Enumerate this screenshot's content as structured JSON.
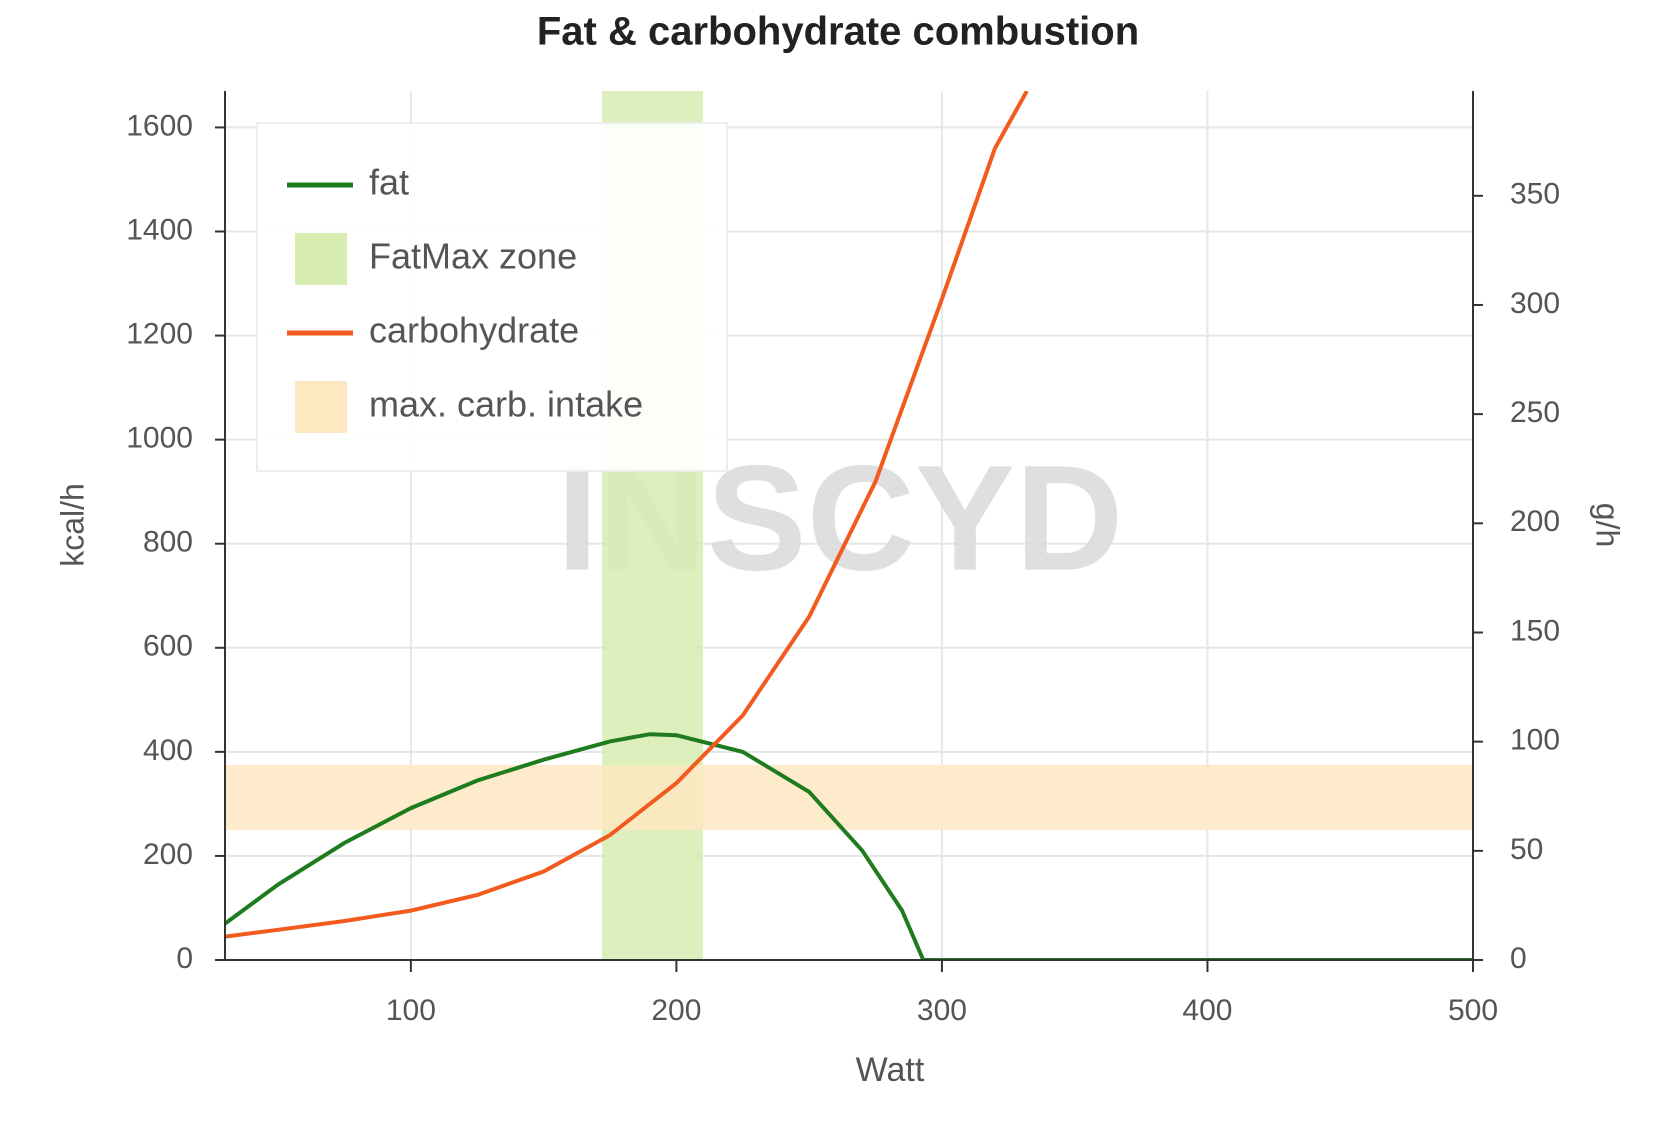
{
  "chart_data": {
    "type": "line",
    "title": "Fat & carbohydrate combustion",
    "watermark": "INSCYD",
    "x_label": "Watt",
    "y_label": "kcal/h",
    "y2_label": "g/h",
    "xlim": [
      30,
      500
    ],
    "xticks": [
      100,
      200,
      300,
      400,
      500
    ],
    "ylim": [
      0,
      1670
    ],
    "yticks": [
      0,
      200,
      400,
      600,
      800,
      1000,
      1200,
      1400,
      1600
    ],
    "y2lim": [
      0,
      398
    ],
    "y2ticks": [
      0,
      50,
      100,
      150,
      200,
      250,
      300,
      350
    ],
    "grid": true,
    "legend": "upper left",
    "series": [
      {
        "name": "fat",
        "color": "#1e7b1e",
        "x": [
          30,
          50,
          75,
          100,
          125,
          150,
          175,
          190,
          200,
          225,
          250,
          270,
          285,
          293,
          300,
          400,
          500
        ],
        "values": [
          70,
          145,
          225,
          292,
          345,
          385,
          420,
          434,
          432,
          400,
          323,
          210,
          95,
          0,
          0,
          0,
          0
        ]
      },
      {
        "name": "carbohydrate",
        "color": "#f25a1e",
        "x": [
          30,
          50,
          75,
          100,
          125,
          150,
          175,
          200,
          225,
          250,
          275,
          300,
          320,
          332
        ],
        "values": [
          45,
          58,
          75,
          95,
          125,
          170,
          240,
          340,
          470,
          660,
          920,
          1270,
          1560,
          1670
        ]
      }
    ],
    "bands": [
      {
        "name": "FatMax zone",
        "color": "#d7ecb0",
        "x": [
          172,
          210
        ]
      },
      {
        "name": "max. carb. intake",
        "color": "#fde8c2",
        "y": [
          250,
          375
        ]
      }
    ]
  }
}
